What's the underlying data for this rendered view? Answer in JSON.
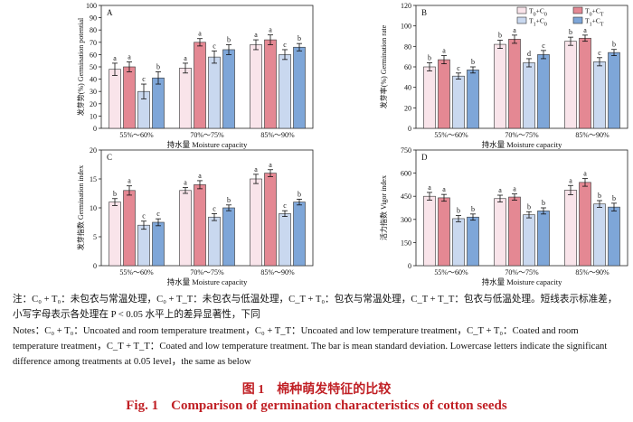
{
  "chart_data": [
    {
      "type": "bar",
      "panel": "A",
      "categories": [
        "55%～60%",
        "70%～75%",
        "85%～90%"
      ],
      "xlabel": "持水量 Moisture capacity",
      "ylabel": "发芽势(%) Germination potential",
      "ylim": [
        0,
        100
      ],
      "yticks": [
        0,
        10,
        20,
        30,
        40,
        50,
        60,
        70,
        80,
        90,
        100
      ],
      "series": [
        {
          "name": "T0+C0",
          "values": [
            48,
            49,
            68
          ],
          "errors": [
            5,
            4,
            4
          ],
          "letters": [
            "a",
            "a",
            "a"
          ]
        },
        {
          "name": "T0+CT",
          "values": [
            50,
            70,
            72
          ],
          "errors": [
            4,
            3,
            4
          ],
          "letters": [
            "a",
            "a",
            "a"
          ]
        },
        {
          "name": "T1+C0",
          "values": [
            30,
            58,
            60
          ],
          "errors": [
            6,
            5,
            4
          ],
          "letters": [
            "c",
            "c",
            "c"
          ]
        },
        {
          "name": "T1+CT",
          "values": [
            41,
            64,
            66
          ],
          "errors": [
            5,
            4,
            3
          ],
          "letters": [
            "b",
            "b",
            "b"
          ]
        }
      ]
    },
    {
      "type": "bar",
      "panel": "B",
      "categories": [
        "55%～60%",
        "70%～75%",
        "85%～90%"
      ],
      "xlabel": "持水量 Moisture capacity",
      "ylabel": "发芽率(%) Germination rate",
      "ylim": [
        0,
        120
      ],
      "yticks": [
        0,
        20,
        40,
        60,
        80,
        100,
        120
      ],
      "legend": {
        "entries": [
          "T0+C0",
          "T0+CT",
          "T1+C0",
          "T1+CT"
        ],
        "position": "top-right"
      },
      "series": [
        {
          "name": "T0+C0",
          "values": [
            60,
            82,
            85
          ],
          "errors": [
            4,
            4,
            4
          ],
          "letters": [
            "b",
            "b",
            "b"
          ]
        },
        {
          "name": "T0+CT",
          "values": [
            67,
            87,
            88
          ],
          "errors": [
            4,
            4,
            3
          ],
          "letters": [
            "a",
            "a",
            "a"
          ]
        },
        {
          "name": "T1+C0",
          "values": [
            51,
            64,
            65
          ],
          "errors": [
            3,
            4,
            4
          ],
          "letters": [
            "c",
            "d",
            "c"
          ]
        },
        {
          "name": "T1+CT",
          "values": [
            57,
            72,
            74
          ],
          "errors": [
            3,
            4,
            3
          ],
          "letters": [
            "b",
            "c",
            "b"
          ]
        }
      ]
    },
    {
      "type": "bar",
      "panel": "C",
      "categories": [
        "55%～60%",
        "70%～75%",
        "85%～90%"
      ],
      "xlabel": "持水量 Moisture capacity",
      "ylabel": "发芽指数 Germination index",
      "ylim": [
        0,
        20
      ],
      "yticks": [
        0,
        5,
        10,
        15,
        20
      ],
      "series": [
        {
          "name": "T0+C0",
          "values": [
            11,
            13,
            15
          ],
          "errors": [
            0.6,
            0.5,
            0.8
          ],
          "letters": [
            "b",
            "a",
            "a"
          ]
        },
        {
          "name": "T0+CT",
          "values": [
            13,
            14,
            16
          ],
          "errors": [
            0.8,
            0.7,
            0.6
          ],
          "letters": [
            "a",
            "a",
            "a"
          ]
        },
        {
          "name": "T1+C0",
          "values": [
            7,
            8.4,
            9
          ],
          "errors": [
            0.7,
            0.6,
            0.5
          ],
          "letters": [
            "c",
            "c",
            "c"
          ]
        },
        {
          "name": "T1+CT",
          "values": [
            7.5,
            10,
            11
          ],
          "errors": [
            0.6,
            0.5,
            0.5
          ],
          "letters": [
            "c",
            "b",
            "b"
          ]
        }
      ]
    },
    {
      "type": "bar",
      "panel": "D",
      "categories": [
        "55%～60%",
        "70%～75%",
        "85%～90%"
      ],
      "xlabel": "持水量 Moisture capacity",
      "ylabel": "活力指数 Vigor index",
      "ylim": [
        0,
        750
      ],
      "yticks": [
        0,
        150,
        300,
        450,
        600,
        750
      ],
      "series": [
        {
          "name": "T0+C0",
          "values": [
            450,
            435,
            490
          ],
          "errors": [
            25,
            22,
            30
          ],
          "letters": [
            "a",
            "a",
            "a"
          ]
        },
        {
          "name": "T0+CT",
          "values": [
            440,
            445,
            540
          ],
          "errors": [
            22,
            20,
            25
          ],
          "letters": [
            "a",
            "a",
            "a"
          ]
        },
        {
          "name": "T1+C0",
          "values": [
            305,
            330,
            400
          ],
          "errors": [
            20,
            20,
            22
          ],
          "letters": [
            "b",
            "b",
            "b"
          ]
        },
        {
          "name": "T1+CT",
          "values": [
            315,
            355,
            380
          ],
          "errors": [
            20,
            20,
            25
          ],
          "letters": [
            "b",
            "b",
            "b"
          ]
        }
      ]
    }
  ],
  "colors": {
    "fills": [
      "#f9e4ea",
      "#e48893",
      "#c9d8ef",
      "#7ea6d8"
    ],
    "caption": "#c01f24"
  },
  "notes": {
    "cn": "注：C₀ + T₀：未包衣与常温处理，C₀ + T_T：未包衣与低温处理，C_T + T₀：包衣与常温处理，C_T + T_T：包衣与低温处理。短线表示标准差，小写字母表示各处理在 P < 0.05 水平上的差异显著性，下同",
    "en": "Notes：C₀ + T₀：Uncoated and room temperature treatment，C₀ + T_T：Uncoated and low temperature treatment，C_T + T₀：Coated and room temperature treatment，C_T + T_T：Coated and low temperature treatment. The bar is mean standard deviation. Lowercase letters indicate the significant difference among treatments at 0.05 level，the same as below"
  },
  "caption": {
    "cn_num": "图 1",
    "cn_title": "棉种萌发特征的比较",
    "en_num": "Fig. 1",
    "en_title": "Comparison of germination characteristics of cotton seeds"
  }
}
